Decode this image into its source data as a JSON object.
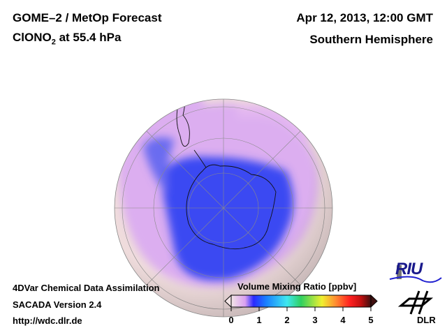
{
  "header": {
    "title_line1": "GOME–2 / MetOp Forecast",
    "title_line2_prefix": "ClONO",
    "title_line2_sub": "2",
    "title_line2_suffix": " at 55.4 hPa",
    "date": "Apr 12, 2013, 12:00 GMT",
    "hemisphere": "Southern Hemisphere"
  },
  "footer": {
    "line1": "4DVar Chemical Data Assimilation",
    "line2": "SACADA Version 2.4",
    "line3": "http://wdc.dlr.de"
  },
  "colorbar": {
    "title": "Volume Mixing Ratio [ppbv]",
    "ticks": [
      "0",
      "1",
      "2",
      "3",
      "4",
      "5"
    ],
    "range": [
      0,
      5
    ],
    "colors": [
      "#f3e6e6",
      "#d9a0f0",
      "#2a2aff",
      "#1a7fff",
      "#3fe8f0",
      "#30d060",
      "#f0f030",
      "#ff8a30",
      "#ff2020",
      "#c01010",
      "#401010"
    ]
  },
  "logos": {
    "riu": "RIU",
    "dlr": "DLR"
  },
  "map_colors": {
    "background": "#efdcdc",
    "lavender": "#d8a4ec",
    "blue": "#3a48f2"
  }
}
